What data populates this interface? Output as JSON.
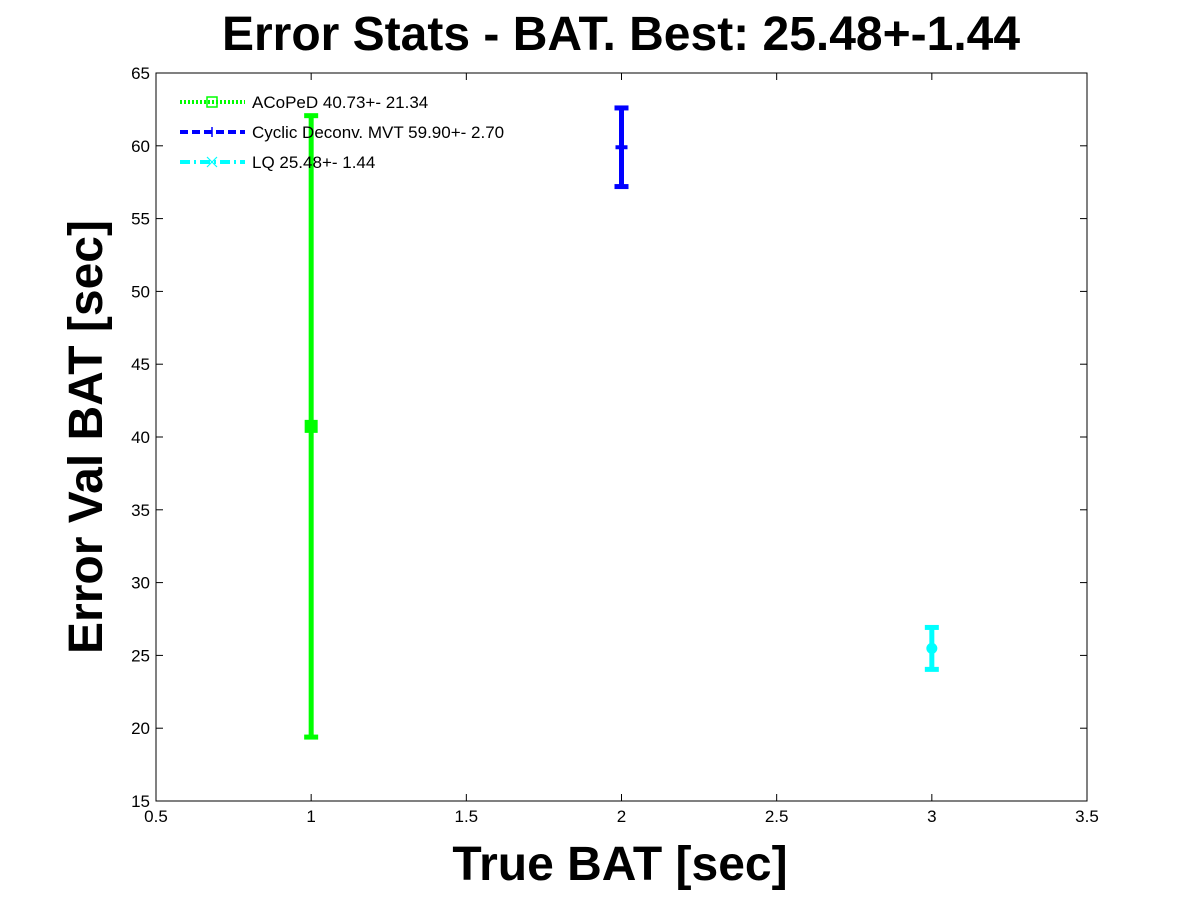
{
  "chart_data": {
    "type": "errorbar",
    "title": "Error Stats - BAT. Best: 25.48+-1.44",
    "xlabel": "True BAT [sec]",
    "ylabel": "Error Val BAT [sec]",
    "xlim": [
      0.5,
      3.5
    ],
    "ylim": [
      15,
      65
    ],
    "xticks": [
      "0.5",
      "1",
      "1.5",
      "2",
      "2.5",
      "3",
      "3.5"
    ],
    "yticks": [
      "15",
      "20",
      "25",
      "30",
      "35",
      "40",
      "45",
      "50",
      "55",
      "60",
      "65"
    ],
    "grid": false,
    "legend_position": "top-left",
    "series": [
      {
        "name": "ACoPeD 40.73+- 21.34",
        "x": 1,
        "y": 40.73,
        "err": 21.34,
        "color": "#00ff00",
        "linestyle": "dotted",
        "marker": "square"
      },
      {
        "name": "Cyclic Deconv. MVT 59.90+- 2.70",
        "x": 2,
        "y": 59.9,
        "err": 2.7,
        "color": "#0000ff",
        "linestyle": "dashed",
        "marker": "plus"
      },
      {
        "name": "LQ 25.48+- 1.44",
        "x": 3,
        "y": 25.48,
        "err": 1.44,
        "color": "#00ffff",
        "linestyle": "dashdot",
        "marker": "asterisk"
      }
    ]
  }
}
